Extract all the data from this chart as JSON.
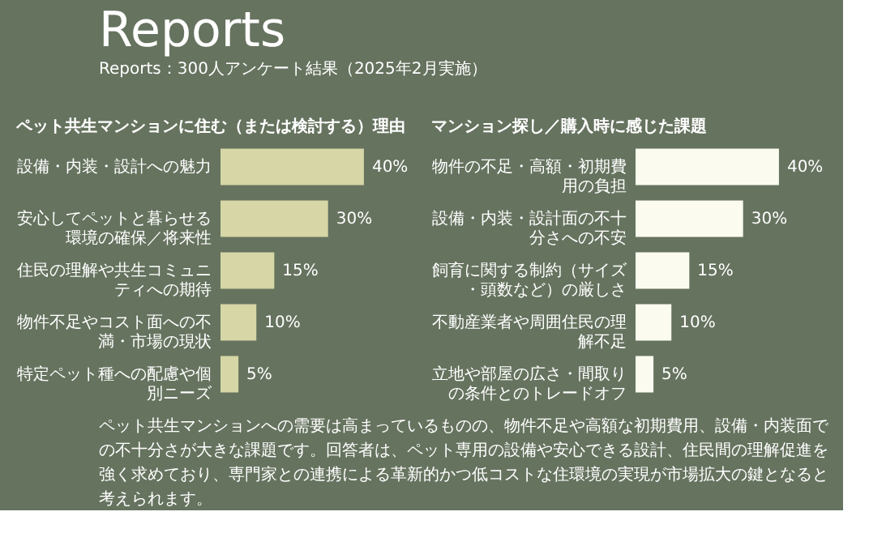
{
  "chart_data": [
    {
      "type": "other",
      "title": "Reports",
      "subtitle": "Reports：300人アンケート結果（2025年2月実施）",
      "annotations": [
        "ペット共生マンションへの需要は高まっているものの、物件不足や高額な初期費用、設備・内装面での不十分さが大きな課題です。回答者は、ペット専用の設備や安心できる設計、住民間の理解促進を強く求めており、専門家との連携による革新的かつ低コストな住環境の実現が市場拡大の鍵となると考えられます。"
      ]
    },
    {
      "type": "bar",
      "orientation": "horizontal",
      "title": "ペット共生マンションに住む（または検討する）理由",
      "categories": [
        "設備・内装・設計への魅力",
        "安心してペットと暮らせる環境の確保／将来性",
        "住民の理解や共生コミュニティへの期待",
        "物件不足やコスト面への不満・市場の現状",
        "特定ペット種への配慮や個別ニーズ"
      ],
      "values": [
        40,
        30,
        15,
        10,
        5
      ],
      "color": "#d6d6a6",
      "value_labels": [
        "40%",
        "30%",
        "15%",
        "10%",
        "5%"
      ]
    },
    {
      "type": "bar",
      "orientation": "horizontal",
      "title": "マンション探し／購入時に感じた課題",
      "categories": [
        "物件の不足・高額・初期費用の負担",
        "設備・内装・設計面の不十分さへの不安",
        "飼育に関する制約（サイズ・頭数など）の厳しさ",
        "不動産業者や周囲住民の理解不足",
        "立地や部屋の広さ・間取りの条件とのトレードオフ"
      ],
      "values": [
        40,
        30,
        15,
        10,
        5
      ],
      "color": "#fbfbf0",
      "value_labels": [
        "40%",
        "30%",
        "15%",
        "10%",
        "5%"
      ]
    }
  ]
}
